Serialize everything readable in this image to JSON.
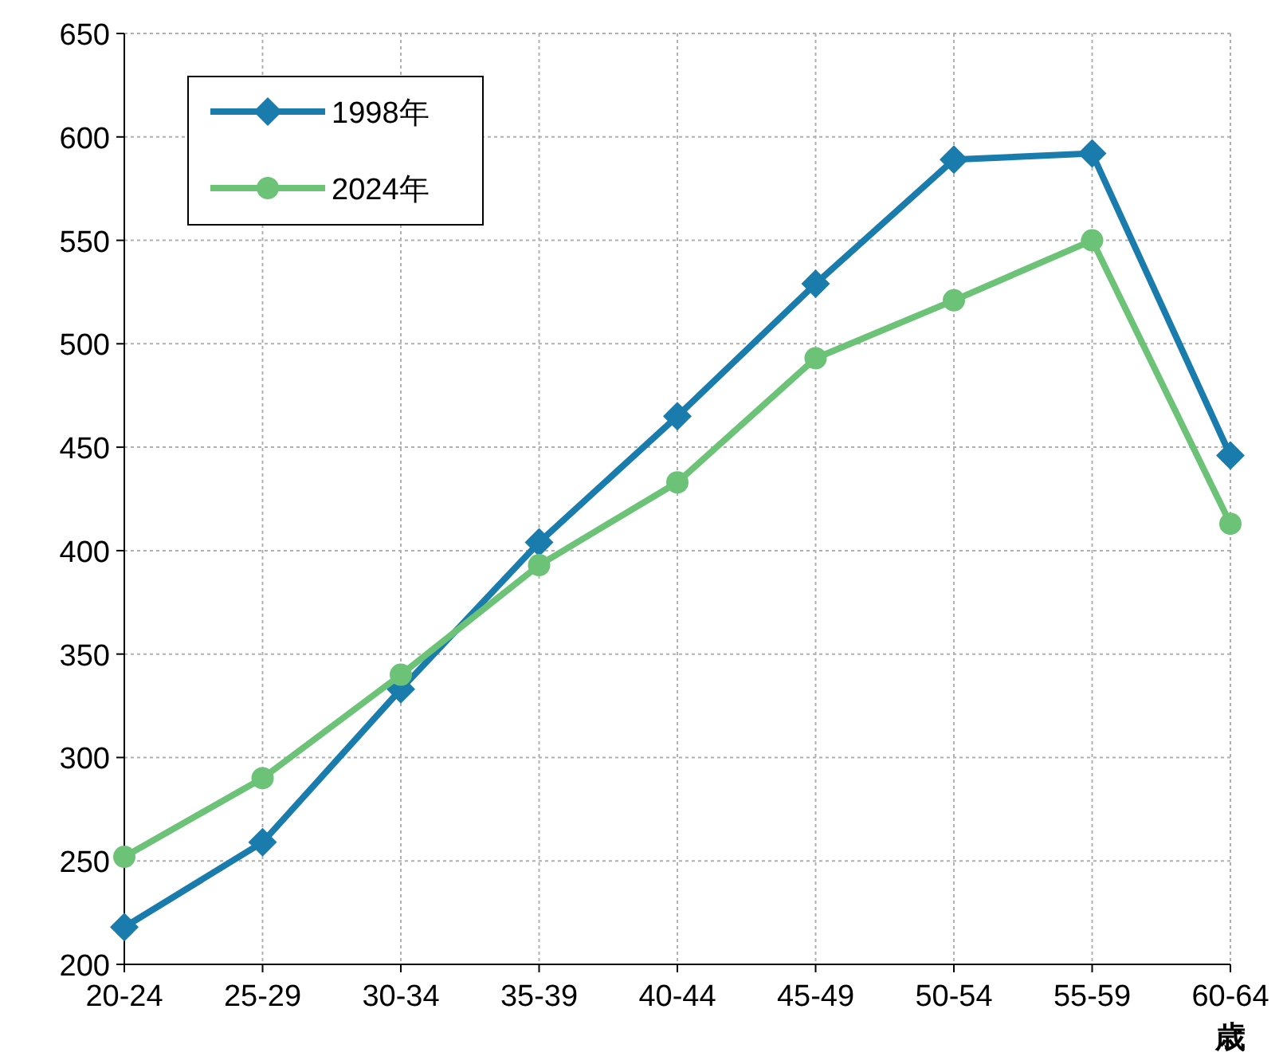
{
  "chart_data": {
    "type": "line",
    "xlabel": "歳",
    "categories": [
      "20-24",
      "25-29",
      "30-34",
      "35-39",
      "40-44",
      "45-49",
      "50-54",
      "55-59",
      "60-64"
    ],
    "series": [
      {
        "name": "1998年",
        "color": "#1a7cad",
        "marker": "diamond",
        "values": [
          218,
          259,
          333,
          404,
          465,
          529,
          589,
          592,
          446
        ]
      },
      {
        "name": "2024年",
        "color": "#6cc378",
        "marker": "circle",
        "values": [
          252,
          290,
          340,
          393,
          433,
          493,
          521,
          550,
          413
        ]
      }
    ],
    "ylim": [
      200,
      650
    ],
    "yticks": [
      200,
      250,
      300,
      350,
      400,
      450,
      500,
      550,
      600,
      650
    ],
    "grid": true,
    "legend": "top left",
    "line_style": "solid"
  }
}
